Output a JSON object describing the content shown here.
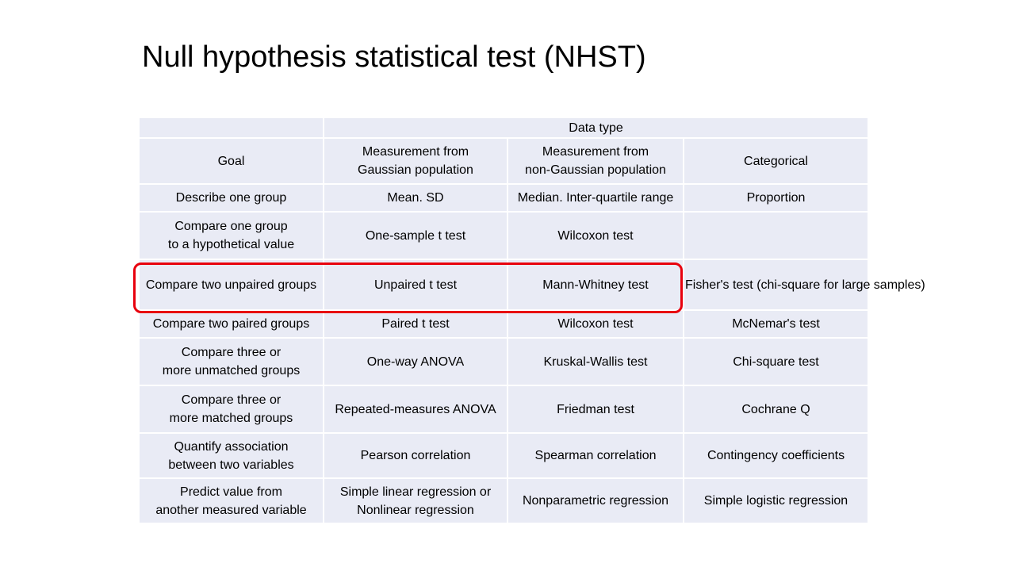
{
  "slide": {
    "title": "Null hypothesis statistical test (NHST)"
  },
  "table": {
    "group_header": "Data type",
    "columns": [
      "Goal",
      "Measurement from\nGaussian population",
      "Measurement from\nnon-Gaussian population",
      "Categorical"
    ],
    "rows": [
      [
        "Describe one group",
        "Mean. SD",
        "Median. Inter-quartile range",
        "Proportion"
      ],
      [
        "Compare one group\nto a hypothetical value",
        "One-sample t test",
        "Wilcoxon test",
        ""
      ],
      [
        "Compare two unpaired groups",
        "Unpaired t test",
        "Mann-Whitney test",
        "Fisher's test\n(chi-square for large samples)"
      ],
      [
        "Compare two paired groups",
        "Paired t test",
        "Wilcoxon test",
        "McNemar's test"
      ],
      [
        "Compare three or\nmore unmatched groups",
        "One-way ANOVA",
        "Kruskal-Wallis test",
        "Chi-square test"
      ],
      [
        "Compare three or\nmore matched groups",
        "Repeated-measures ANOVA",
        "Friedman test",
        "Cochrane Q"
      ],
      [
        "Quantify association\nbetween two variables",
        "Pearson correlation",
        "Spearman correlation",
        "Contingency coefficients"
      ],
      [
        "Predict value from\nanother measured variable",
        "Simple linear regression or\nNonlinear regression",
        "Nonparametric regression",
        "Simple logistic regression"
      ]
    ]
  },
  "highlight": {
    "color": "#e8000d",
    "row_index": 2
  }
}
